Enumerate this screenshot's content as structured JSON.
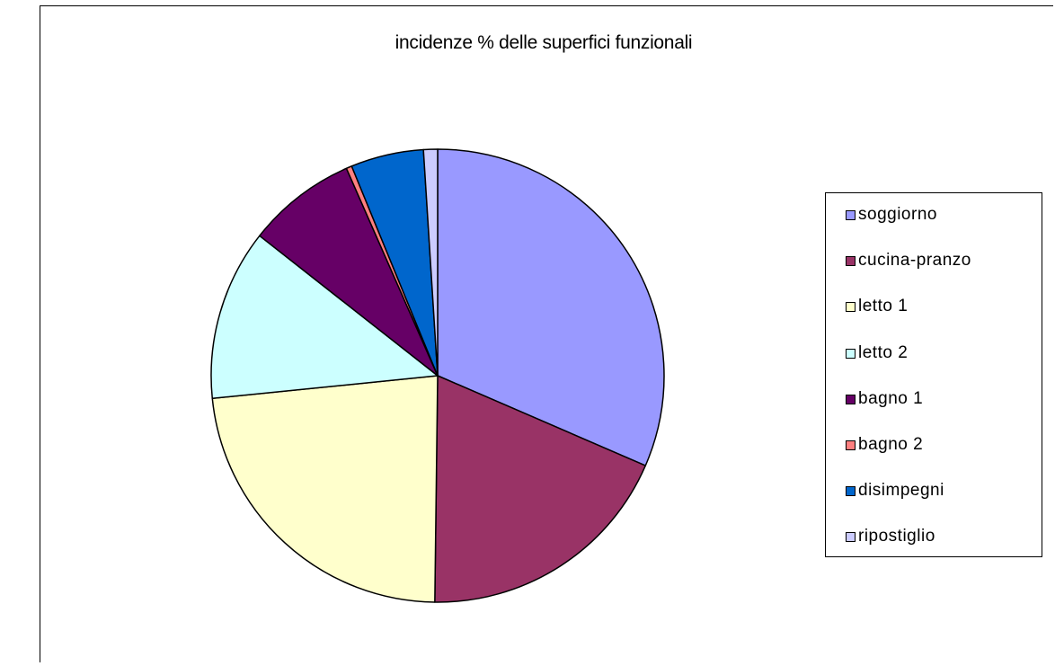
{
  "chart_data": {
    "type": "pie",
    "title": "incidenze % delle superfici funzionali",
    "legend_position": "right",
    "slices": [
      {
        "label": "soggiorno",
        "value": 31.5,
        "color": "#9999FF"
      },
      {
        "label": "cucina-pranzo",
        "value": 18.7,
        "color": "#993366"
      },
      {
        "label": "letto 1",
        "value": 23.2,
        "color": "#FFFFCC"
      },
      {
        "label": "letto 2",
        "value": 12.2,
        "color": "#CCFFFF"
      },
      {
        "label": "bagno 1",
        "value": 7.8,
        "color": "#660066"
      },
      {
        "label": "bagno 2",
        "value": 0.4,
        "color": "#FF8080"
      },
      {
        "label": "disimpegni",
        "value": 5.2,
        "color": "#0066CC"
      },
      {
        "label": "ripostiglio",
        "value": 1.0,
        "color": "#CCCCFF"
      }
    ]
  }
}
